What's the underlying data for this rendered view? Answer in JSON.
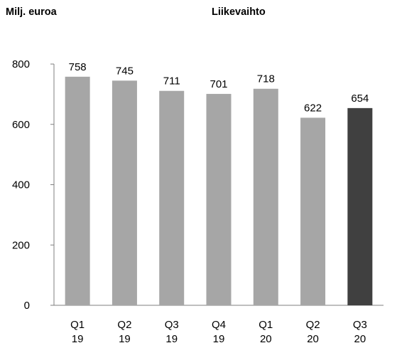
{
  "chart": {
    "title": "Liikevaihto",
    "unit_label": "Milj. euroa"
  },
  "chart_data": {
    "type": "bar",
    "title": "Liikevaihto",
    "ylabel": "Milj. euroa",
    "xlabel": "",
    "categories": [
      "Q1 19",
      "Q2 19",
      "Q3 19",
      "Q4 19",
      "Q1 20",
      "Q2 20",
      "Q3 20"
    ],
    "category_lines": [
      [
        "Q1",
        "19"
      ],
      [
        "Q2",
        "19"
      ],
      [
        "Q3",
        "19"
      ],
      [
        "Q4",
        "19"
      ],
      [
        "Q1",
        "20"
      ],
      [
        "Q2",
        "20"
      ],
      [
        "Q3",
        "20"
      ]
    ],
    "values": [
      758,
      745,
      711,
      701,
      718,
      622,
      654
    ],
    "ylim": [
      0,
      800
    ],
    "yticks": [
      0,
      200,
      400,
      600,
      800
    ],
    "grid": false,
    "data_labels": true,
    "colors": {
      "default_bar": "#a6a6a6",
      "highlight_bar": "#404040",
      "axis": "#7f7f7f"
    },
    "highlight_index": 6
  }
}
